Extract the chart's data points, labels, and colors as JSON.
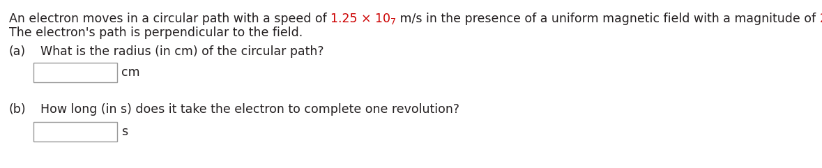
{
  "bg_color": "#ffffff",
  "text_color_black": "#231f20",
  "text_color_red": "#cc0000",
  "line2": "The electron's path is perpendicular to the field.",
  "part_a_label": "(a)",
  "part_a_question": "What is the radius (in cm) of the circular path?",
  "part_a_unit": "cm",
  "part_b_label": "(b)",
  "part_b_question": "How long (in s) does it take the electron to complete one revolution?",
  "part_b_unit": "s",
  "font_size": 12.5,
  "font_family": "DejaVu Sans"
}
